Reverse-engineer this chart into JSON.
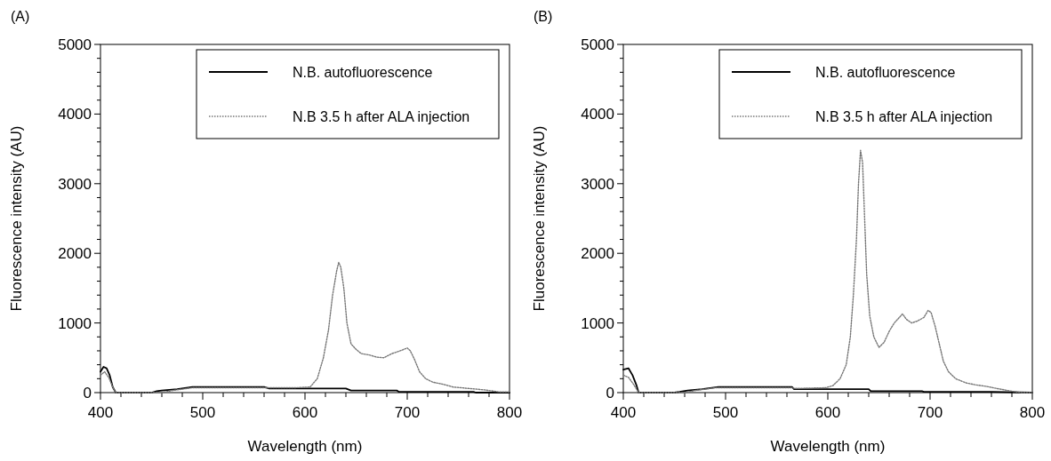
{
  "chart_data": [
    {
      "type": "line",
      "title": "(A)",
      "xlabel": "Wavelength (nm)",
      "ylabel": "Fluorescence intensity (AU)",
      "xlim": [
        400,
        800
      ],
      "ylim": [
        0,
        5000
      ],
      "xticks": [
        400,
        {
          "value": 420,
          "label": null
        },
        {
          "value": 440,
          "label": null
        },
        {
          "value": 460,
          "label": null
        },
        {
          "value": 480,
          "label": null
        },
        500,
        {
          "value": 520,
          "label": null
        },
        {
          "value": 540,
          "label": null
        },
        {
          "value": 560,
          "label": null
        },
        {
          "value": 580,
          "label": null
        },
        600,
        {
          "value": 620,
          "label": null
        },
        {
          "value": 640,
          "label": null
        },
        {
          "value": 660,
          "label": null
        },
        {
          "value": 680,
          "label": null
        },
        700,
        {
          "value": 720,
          "label": null
        },
        {
          "value": 740,
          "label": null
        },
        {
          "value": 760,
          "label": null
        },
        {
          "value": 780,
          "label": null
        },
        800
      ],
      "yticks": [
        0,
        {
          "value": 200,
          "label": null
        },
        {
          "value": 400,
          "label": null
        },
        {
          "value": 600,
          "label": null
        },
        {
          "value": 800,
          "label": null
        },
        1000,
        {
          "value": 1200,
          "label": null
        },
        {
          "value": 1400,
          "label": null
        },
        {
          "value": 1600,
          "label": null
        },
        {
          "value": 1800,
          "label": null
        },
        2000,
        {
          "value": 2200,
          "label": null
        },
        {
          "value": 2400,
          "label": null
        },
        {
          "value": 2600,
          "label": null
        },
        {
          "value": 2800,
          "label": null
        },
        3000,
        {
          "value": 3200,
          "label": null
        },
        {
          "value": 3400,
          "label": null
        },
        {
          "value": 3600,
          "label": null
        },
        {
          "value": 3800,
          "label": null
        },
        4000,
        {
          "value": 4200,
          "label": null
        },
        {
          "value": 4400,
          "label": null
        },
        {
          "value": 4600,
          "label": null
        },
        {
          "value": 4800,
          "label": null
        },
        5000
      ],
      "legend": "top right",
      "grid": false,
      "marker": "none",
      "series": [
        {
          "name": "N.B. autofluorescence",
          "color": "#000000",
          "line_style": "solid",
          "x": [
            400,
            403,
            406,
            409,
            412,
            415,
            450,
            455,
            460,
            475,
            490,
            560,
            565,
            640,
            645,
            690,
            692,
            765,
            767,
            800
          ],
          "values": [
            300,
            370,
            350,
            250,
            80,
            0,
            0,
            20,
            30,
            50,
            80,
            80,
            60,
            60,
            30,
            30,
            10,
            10,
            0,
            0
          ]
        },
        {
          "name": "N.B 3.5 h after ALA injection",
          "color": "#777777",
          "line_style": "dotted",
          "x": [
            400,
            404,
            408,
            412,
            415,
            460,
            470,
            490,
            560,
            590,
            605,
            612,
            618,
            623,
            627,
            631,
            633,
            635,
            638,
            641,
            645,
            650,
            655,
            663,
            670,
            677,
            685,
            693,
            700,
            703,
            707,
            712,
            718,
            725,
            735,
            745,
            760,
            775,
            790,
            800
          ],
          "values": [
            250,
            300,
            220,
            80,
            0,
            0,
            30,
            70,
            70,
            70,
            80,
            200,
            500,
            900,
            1400,
            1750,
            1870,
            1800,
            1500,
            1000,
            700,
            620,
            560,
            540,
            510,
            500,
            560,
            600,
            640,
            600,
            480,
            300,
            200,
            150,
            120,
            80,
            60,
            40,
            10,
            10
          ]
        }
      ]
    },
    {
      "type": "line",
      "title": "(B)",
      "xlabel": "Wavelength (nm)",
      "ylabel": "Fluorescence intensity (AU)",
      "xlim": [
        400,
        800
      ],
      "ylim": [
        0,
        5000
      ],
      "xticks": [
        400,
        {
          "value": 420,
          "label": null
        },
        {
          "value": 440,
          "label": null
        },
        {
          "value": 460,
          "label": null
        },
        {
          "value": 480,
          "label": null
        },
        500,
        {
          "value": 520,
          "label": null
        },
        {
          "value": 540,
          "label": null
        },
        {
          "value": 560,
          "label": null
        },
        {
          "value": 580,
          "label": null
        },
        600,
        {
          "value": 620,
          "label": null
        },
        {
          "value": 640,
          "label": null
        },
        {
          "value": 660,
          "label": null
        },
        {
          "value": 680,
          "label": null
        },
        700,
        {
          "value": 720,
          "label": null
        },
        {
          "value": 740,
          "label": null
        },
        {
          "value": 760,
          "label": null
        },
        {
          "value": 780,
          "label": null
        },
        800
      ],
      "yticks": [
        0,
        {
          "value": 200,
          "label": null
        },
        {
          "value": 400,
          "label": null
        },
        {
          "value": 600,
          "label": null
        },
        {
          "value": 800,
          "label": null
        },
        1000,
        {
          "value": 1200,
          "label": null
        },
        {
          "value": 1400,
          "label": null
        },
        {
          "value": 1600,
          "label": null
        },
        {
          "value": 1800,
          "label": null
        },
        2000,
        {
          "value": 2200,
          "label": null
        },
        {
          "value": 2400,
          "label": null
        },
        {
          "value": 2600,
          "label": null
        },
        {
          "value": 2800,
          "label": null
        },
        3000,
        {
          "value": 3200,
          "label": null
        },
        {
          "value": 3400,
          "label": null
        },
        {
          "value": 3600,
          "label": null
        },
        {
          "value": 3800,
          "label": null
        },
        4000,
        {
          "value": 4200,
          "label": null
        },
        {
          "value": 4400,
          "label": null
        },
        {
          "value": 4600,
          "label": null
        },
        {
          "value": 4800,
          "label": null
        },
        5000
      ],
      "legend": "top right",
      "grid": false,
      "marker": "none",
      "series": [
        {
          "name": "N.B. autofluorescence",
          "color": "#000000",
          "line_style": "solid",
          "x": [
            400,
            405,
            409,
            413,
            415,
            450,
            455,
            463,
            477,
            493,
            565,
            567,
            640,
            642,
            692,
            694,
            760,
            800
          ],
          "values": [
            330,
            350,
            250,
            100,
            0,
            0,
            10,
            30,
            50,
            80,
            80,
            50,
            50,
            20,
            20,
            10,
            10,
            0
          ]
        },
        {
          "name": "N.B 3.5 h after ALA injection",
          "color": "#777777",
          "line_style": "dotted",
          "x": [
            400,
            405,
            410,
            415,
            460,
            470,
            490,
            565,
            568,
            598,
            605,
            612,
            618,
            622,
            625,
            628,
            630,
            632,
            634,
            636,
            638,
            641,
            645,
            650,
            655,
            660,
            665,
            670,
            673,
            677,
            682,
            688,
            694,
            698,
            701,
            705,
            709,
            713,
            718,
            725,
            735,
            745,
            755,
            765,
            780,
            790,
            800
          ],
          "values": [
            250,
            220,
            120,
            0,
            0,
            30,
            70,
            70,
            60,
            70,
            100,
            200,
            400,
            800,
            1400,
            2200,
            3000,
            3480,
            3300,
            2500,
            1700,
            1100,
            800,
            650,
            720,
            880,
            1000,
            1080,
            1130,
            1050,
            1000,
            1030,
            1080,
            1180,
            1150,
            950,
            700,
            450,
            300,
            200,
            140,
            110,
            90,
            60,
            20,
            0,
            0
          ]
        }
      ]
    }
  ]
}
